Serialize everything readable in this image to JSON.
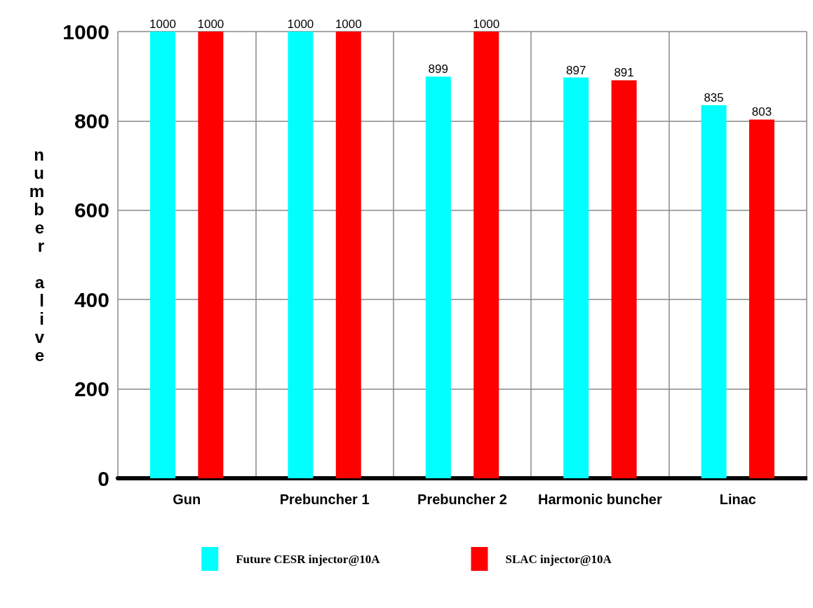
{
  "chart_data": {
    "type": "bar",
    "ylabel": "number alive",
    "categories": [
      "Gun",
      "Prebuncher 1",
      "Prebuncher 2",
      "Harmonic buncher",
      "Linac"
    ],
    "series": [
      {
        "name": "Future CESR injector@10A",
        "color": "#00ffff",
        "values": [
          1000,
          1000,
          899,
          897,
          835
        ]
      },
      {
        "name": "SLAC injector@10A",
        "color": "#ff0000",
        "values": [
          1000,
          1000,
          1000,
          891,
          803
        ]
      }
    ],
    "ylim": [
      0,
      1000
    ],
    "yticks": [
      0,
      200,
      400,
      600,
      800,
      1000
    ],
    "grid": true,
    "legend": "bottom",
    "data_labels": true
  }
}
